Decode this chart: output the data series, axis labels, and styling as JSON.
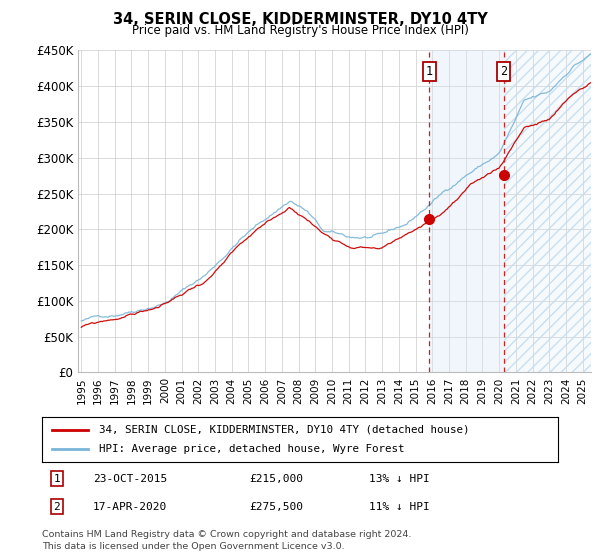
{
  "title": "34, SERIN CLOSE, KIDDERMINSTER, DY10 4TY",
  "subtitle": "Price paid vs. HM Land Registry's House Price Index (HPI)",
  "ylabel_ticks": [
    "£0",
    "£50K",
    "£100K",
    "£150K",
    "£200K",
    "£250K",
    "£300K",
    "£350K",
    "£400K",
    "£450K"
  ],
  "ytick_vals": [
    0,
    50000,
    100000,
    150000,
    200000,
    250000,
    300000,
    350000,
    400000,
    450000
  ],
  "ylim": [
    0,
    450000
  ],
  "xlim_start": 1994.8,
  "xlim_end": 2025.5,
  "sale1_date": 2015.81,
  "sale1_price": 215000,
  "sale2_date": 2020.29,
  "sale2_price": 275500,
  "hpi_color": "#7ab4d8",
  "price_color": "#cc0000",
  "vline_color": "#cc2222",
  "shade_color": "#d4e8f5",
  "legend_label1": "34, SERIN CLOSE, KIDDERMINSTER, DY10 4TY (detached house)",
  "legend_label2": "HPI: Average price, detached house, Wyre Forest",
  "sale1_text": "23-OCT-2015",
  "sale1_price_text": "£215,000",
  "sale1_pct": "13% ↓ HPI",
  "sale2_text": "17-APR-2020",
  "sale2_price_text": "£275,500",
  "sale2_pct": "11% ↓ HPI",
  "footer1": "Contains HM Land Registry data © Crown copyright and database right 2024.",
  "footer2": "This data is licensed under the Open Government Licence v3.0."
}
